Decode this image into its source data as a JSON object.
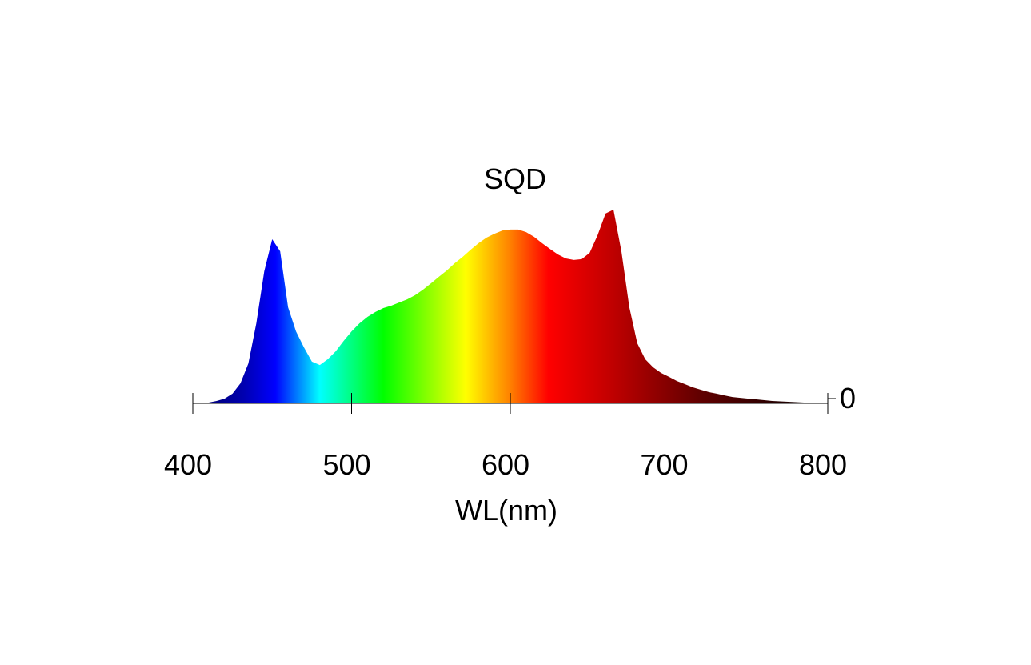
{
  "chart_data": {
    "type": "area",
    "title": "SQD",
    "xlabel": "WL(nm)",
    "x": [
      400,
      405,
      410,
      415,
      420,
      425,
      430,
      435,
      440,
      445,
      450,
      455,
      460,
      465,
      470,
      475,
      480,
      485,
      490,
      495,
      500,
      505,
      510,
      515,
      520,
      525,
      530,
      535,
      540,
      545,
      550,
      555,
      560,
      565,
      570,
      575,
      580,
      585,
      590,
      595,
      600,
      605,
      610,
      615,
      620,
      625,
      630,
      635,
      640,
      645,
      650,
      655,
      660,
      665,
      670,
      675,
      680,
      685,
      690,
      695,
      700,
      705,
      710,
      715,
      720,
      725,
      730,
      735,
      740,
      745,
      750,
      755,
      760,
      765,
      770,
      775,
      780,
      785,
      790,
      795,
      800
    ],
    "values": [
      0,
      0.002,
      0.004,
      0.012,
      0.024,
      0.049,
      0.101,
      0.202,
      0.405,
      0.668,
      0.83,
      0.769,
      0.486,
      0.364,
      0.283,
      0.211,
      0.194,
      0.223,
      0.263,
      0.316,
      0.364,
      0.405,
      0.437,
      0.462,
      0.482,
      0.494,
      0.51,
      0.526,
      0.547,
      0.575,
      0.607,
      0.64,
      0.672,
      0.709,
      0.741,
      0.777,
      0.81,
      0.838,
      0.858,
      0.874,
      0.879,
      0.879,
      0.866,
      0.842,
      0.81,
      0.781,
      0.753,
      0.733,
      0.725,
      0.729,
      0.761,
      0.85,
      0.96,
      0.98,
      0.769,
      0.486,
      0.304,
      0.223,
      0.182,
      0.154,
      0.134,
      0.113,
      0.097,
      0.081,
      0.069,
      0.057,
      0.049,
      0.04,
      0.032,
      0.028,
      0.024,
      0.02,
      0.016,
      0.012,
      0.01,
      0.008,
      0.006,
      0.004,
      0.004,
      0.002,
      0
    ],
    "xlim": [
      400,
      800
    ],
    "xticks": [
      400,
      500,
      600,
      700,
      800
    ],
    "ylim": [
      0,
      1
    ],
    "yticks": [
      0
    ]
  }
}
